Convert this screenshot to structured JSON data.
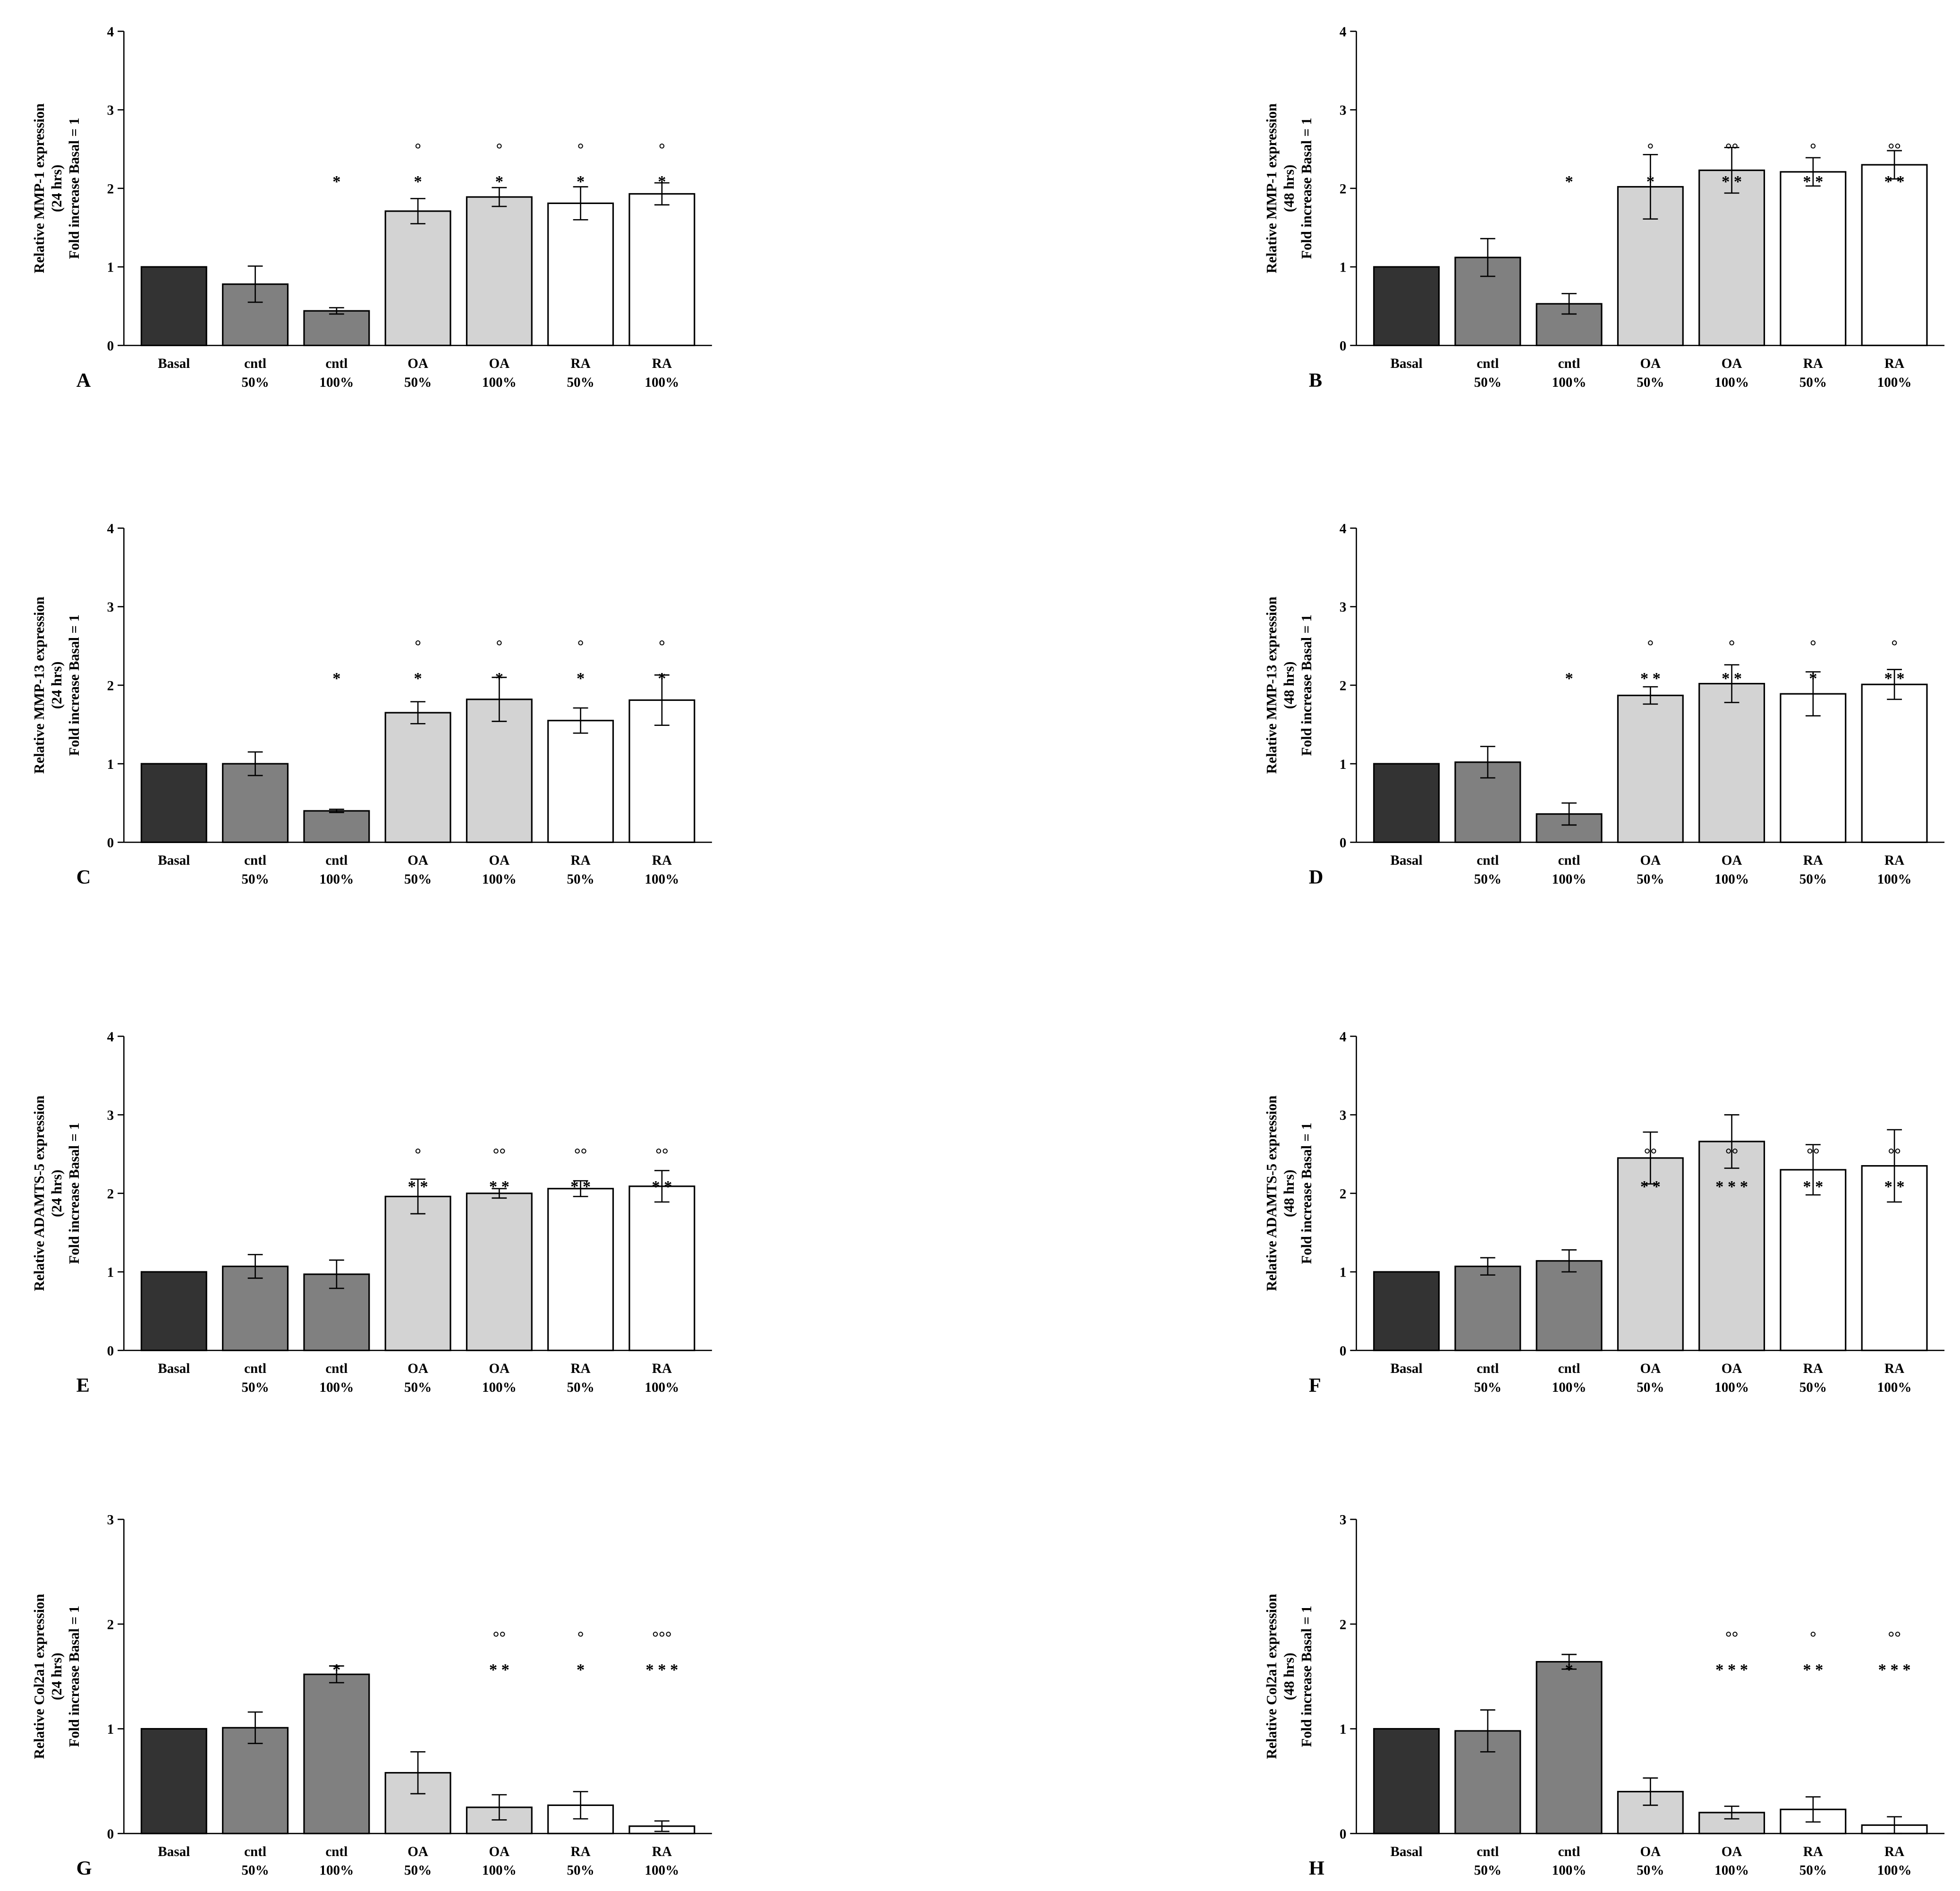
{
  "figure": {
    "categories": [
      [
        "Basal",
        ""
      ],
      [
        "cntl",
        "50%"
      ],
      [
        "cntl",
        "100%"
      ],
      [
        "OA",
        "50%"
      ],
      [
        "OA",
        "100%"
      ],
      [
        "RA",
        "50%"
      ],
      [
        "RA",
        "100%"
      ]
    ],
    "bar_colors": [
      "#333333",
      "#808080",
      "#808080",
      "#d3d3d3",
      "#d3d3d3",
      "#ffffff",
      "#ffffff"
    ]
  },
  "chart_data": [
    {
      "panel": "A",
      "type": "bar",
      "ylabel": [
        "Relative MMP-1 expression",
        "(24 hrs)",
        "Fold increase Basal = 1"
      ],
      "ylim": [
        0,
        4
      ],
      "yticks": [
        0,
        1,
        2,
        3,
        4
      ],
      "values": [
        1.0,
        0.78,
        0.44,
        1.71,
        1.89,
        1.81,
        1.93
      ],
      "errors": [
        0,
        0.23,
        0.04,
        0.16,
        0.12,
        0.21,
        0.14
      ],
      "stars": [
        "",
        "",
        "*",
        "*",
        "*",
        "*",
        "*"
      ],
      "circles": [
        "",
        "",
        "",
        "°",
        "°",
        "°",
        "°"
      ]
    },
    {
      "panel": "B",
      "type": "bar",
      "ylabel": [
        "Relative MMP-1 expression",
        "(48 hrs)",
        "Fold increase Basal = 1"
      ],
      "ylim": [
        0,
        4
      ],
      "yticks": [
        0,
        1,
        2,
        3,
        4
      ],
      "values": [
        1.0,
        1.12,
        0.53,
        2.02,
        2.23,
        2.21,
        2.3
      ],
      "errors": [
        0,
        0.24,
        0.13,
        0.41,
        0.29,
        0.18,
        0.18
      ],
      "stars": [
        "",
        "",
        "*",
        "*",
        "**",
        "**",
        "**"
      ],
      "circles": [
        "",
        "",
        "",
        "°",
        "°°",
        "°",
        "°°"
      ]
    },
    {
      "panel": "C",
      "type": "bar",
      "ylabel": [
        "Relative MMP-13 expression",
        "(24 hrs)",
        "Fold increase Basal = 1"
      ],
      "ylim": [
        0,
        4
      ],
      "yticks": [
        0,
        1,
        2,
        3,
        4
      ],
      "values": [
        1.0,
        1.0,
        0.4,
        1.65,
        1.82,
        1.55,
        1.81
      ],
      "errors": [
        0,
        0.15,
        0.02,
        0.14,
        0.28,
        0.16,
        0.32
      ],
      "stars": [
        "",
        "",
        "*",
        "*",
        "*",
        "*",
        "*"
      ],
      "circles": [
        "",
        "",
        "",
        "°",
        "°",
        "°",
        "°"
      ]
    },
    {
      "panel": "D",
      "type": "bar",
      "ylabel": [
        "Relative MMP-13 expression",
        "(48 hrs)",
        "Fold increase Basal = 1"
      ],
      "ylim": [
        0,
        4
      ],
      "yticks": [
        0,
        1,
        2,
        3,
        4
      ],
      "values": [
        1.0,
        1.02,
        0.36,
        1.87,
        2.02,
        1.89,
        2.01
      ],
      "errors": [
        0,
        0.2,
        0.14,
        0.11,
        0.24,
        0.28,
        0.19
      ],
      "stars": [
        "",
        "",
        "*",
        "**",
        "**",
        "*",
        "**"
      ],
      "circles": [
        "",
        "",
        "",
        "°",
        "°",
        "°",
        "°"
      ]
    },
    {
      "panel": "E",
      "type": "bar",
      "ylabel": [
        "Relative ADAMTS-5 expression",
        "(24 hrs)",
        "Fold increase Basal = 1"
      ],
      "ylim": [
        0,
        4
      ],
      "yticks": [
        0,
        1,
        2,
        3,
        4
      ],
      "values": [
        1.0,
        1.07,
        0.97,
        1.96,
        2.0,
        2.06,
        2.09
      ],
      "errors": [
        0,
        0.15,
        0.18,
        0.22,
        0.06,
        0.1,
        0.2
      ],
      "stars": [
        "",
        "",
        "",
        "**",
        "**",
        "**",
        "**"
      ],
      "circles": [
        "",
        "",
        "",
        "°",
        "°°",
        "°°",
        "°°"
      ]
    },
    {
      "panel": "F",
      "type": "bar",
      "ylabel": [
        "Relative ADAMTS-5 expression",
        "(48 hrs)",
        "Fold increase Basal = 1"
      ],
      "ylim": [
        0,
        4
      ],
      "yticks": [
        0,
        1,
        2,
        3,
        4
      ],
      "values": [
        1.0,
        1.07,
        1.14,
        2.45,
        2.66,
        2.3,
        2.35
      ],
      "errors": [
        0,
        0.11,
        0.14,
        0.33,
        0.34,
        0.32,
        0.46
      ],
      "stars": [
        "",
        "",
        "",
        "**",
        "***",
        "**",
        "**"
      ],
      "circles": [
        "",
        "",
        "",
        "°°",
        "°°",
        "°°",
        "°°"
      ]
    },
    {
      "panel": "G",
      "type": "bar",
      "ylabel": [
        "Relative Col2a1 expression",
        "(24 hrs)",
        "Fold increase Basal = 1"
      ],
      "ylim": [
        0,
        3
      ],
      "yticks": [
        0,
        1,
        2,
        3
      ],
      "values": [
        1.0,
        1.01,
        1.52,
        0.58,
        0.25,
        0.27,
        0.07
      ],
      "errors": [
        0,
        0.15,
        0.08,
        0.2,
        0.12,
        0.13,
        0.05
      ],
      "stars": [
        "",
        "",
        "*",
        "",
        "**",
        "*",
        "***"
      ],
      "circles": [
        "",
        "",
        "",
        "",
        "°°",
        "°",
        "°°°"
      ]
    },
    {
      "panel": "H",
      "type": "bar",
      "ylabel": [
        "Relative Col2a1 expression",
        "(48 hrs)",
        "Fold increase Basal = 1"
      ],
      "ylim": [
        0,
        3
      ],
      "yticks": [
        0,
        1,
        2,
        3
      ],
      "values": [
        1.0,
        0.98,
        1.64,
        0.4,
        0.2,
        0.23,
        0.08
      ],
      "errors": [
        0,
        0.2,
        0.07,
        0.13,
        0.06,
        0.12,
        0.08
      ],
      "stars": [
        "",
        "",
        "*",
        "",
        "***",
        "**",
        "***"
      ],
      "circles": [
        "",
        "",
        "",
        "",
        "°°",
        "°",
        "°°"
      ]
    }
  ]
}
